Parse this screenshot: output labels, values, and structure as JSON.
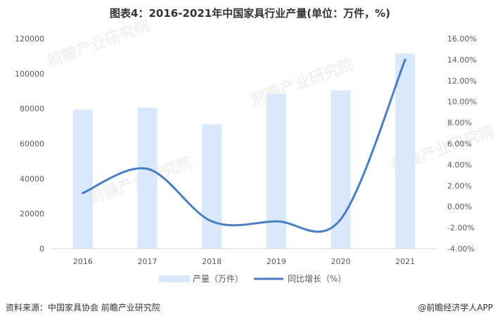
{
  "title": "图表4：2016-2021年中国家具行业产量(单位：万件，%)",
  "chart_data": {
    "type": "bar+line",
    "categories": [
      "2016",
      "2017",
      "2018",
      "2019",
      "2020",
      "2021"
    ],
    "series": [
      {
        "name": "产量（万件）",
        "type": "bar",
        "axis": "left",
        "color": "#dae8fb",
        "values": [
          79500,
          80500,
          71000,
          88500,
          90500,
          111500
        ]
      },
      {
        "name": "同比增长（%）",
        "type": "line",
        "axis": "right",
        "color": "#4a7ec4",
        "values": [
          1.3,
          3.6,
          -1.4,
          -1.4,
          -1.2,
          14.0
        ]
      }
    ],
    "left_axis": {
      "ylim": [
        0,
        120000
      ],
      "ticks": [
        "0",
        "20000",
        "40000",
        "60000",
        "80000",
        "100000",
        "120000"
      ]
    },
    "right_axis": {
      "ylim": [
        -4,
        16
      ],
      "ticks": [
        "-4.00%",
        "-2.00%",
        "0.00%",
        "2.00%",
        "4.00%",
        "6.00%",
        "8.00%",
        "10.00%",
        "12.00%",
        "14.00%",
        "16.00%"
      ]
    },
    "legend_position": "bottom"
  },
  "footer": {
    "source": "资料来源：中国家具协会 前瞻产业研究院",
    "brand": "@前瞻经济学人APP"
  },
  "watermark": "前瞻产业研究院"
}
